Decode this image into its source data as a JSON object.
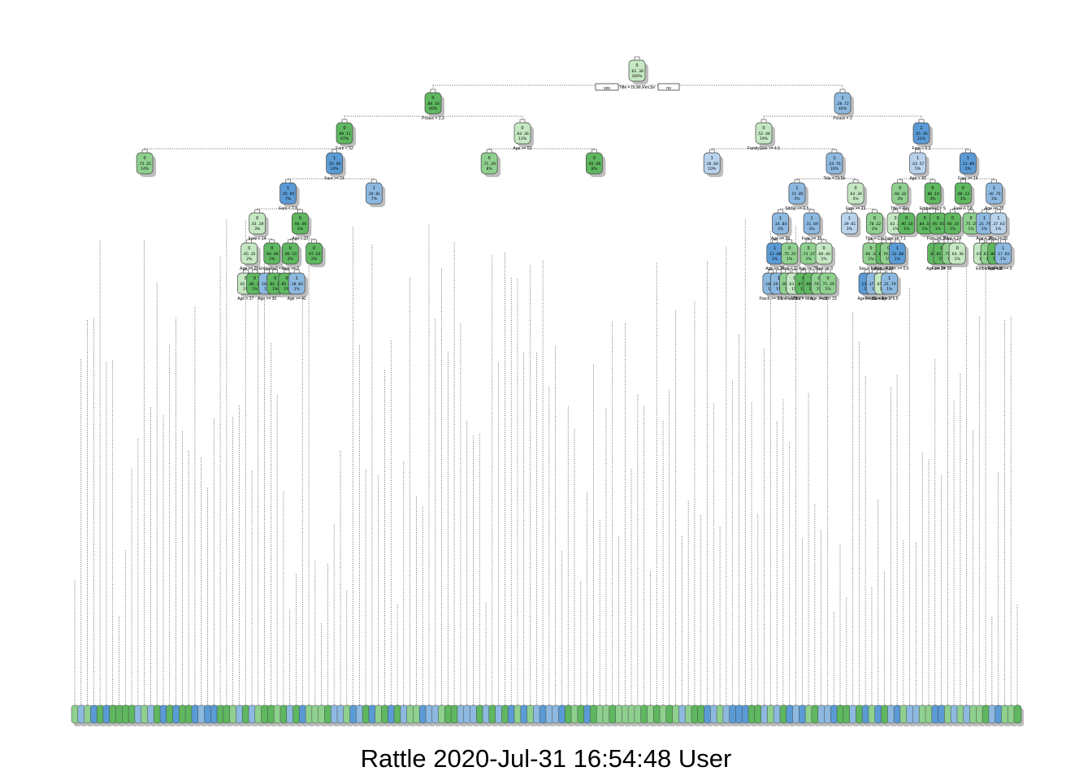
{
  "palette": {
    "green_dark": "#5fb760",
    "green_mid": "#8fd08f",
    "green_light": "#c5e8c3",
    "blue_light": "#b9d3ec",
    "blue_mid": "#8db9e0",
    "blue_dark": "#5b9bd5",
    "line": "#333333",
    "shadow": "#bdbdbd"
  },
  "footer": {
    "caption": "Rattle 2020-Jul-31 16:54:48 User"
  },
  "tree": {
    "root": {
      "cls": "0",
      "prob": ".62 .38",
      "pct": "100%",
      "split": "Title = Dr,Mr,Rev,Sir",
      "yes": "yes",
      "no": "no"
    },
    "level1": [
      {
        "cls": "0",
        "prob": ".84 .16",
        "pct": "60%",
        "split": "Pclass = 2,3"
      },
      {
        "cls": "1",
        "prob": ".28 .72",
        "pct": "40%",
        "split": "Pclass = 3"
      }
    ],
    "level2": [
      {
        "cls": "0",
        "prob": ".89 .11",
        "pct": "47%",
        "split": "Fare < 52"
      },
      {
        "cls": "0",
        "prob": ".64 .36",
        "pct": "13%",
        "split": "Age >= 53"
      },
      {
        "cls": "0",
        "prob": ".52 .48",
        "pct": "19%",
        "split": "FamilySize >= 4.5"
      },
      {
        "cls": "1",
        "prob": ".05 .95",
        "pct": "21%",
        "split": "Fare < 5.3"
      }
    ],
    "split_labels": [
      "Fare >= 14",
      "Fare < 7.8",
      "Fare < 14",
      "Age >= 28",
      "Age < 27",
      "Embarked = S",
      "Age >= 30",
      "Age < 27",
      "Fare >= 0",
      "Age >= 42",
      "Title = Dr,Mr",
      "SibSp >= 0.5",
      "Age >= 39",
      "Age >= 28",
      "Parch >= 0.5",
      "Fare < 11",
      "Fare < 125",
      "Fare < 27",
      "Fare >= 15",
      "Age >= 7.5",
      "Title = Miss",
      "Fare >= 9",
      "Age >= 30",
      "Fare < 15",
      "Fare >= 23",
      "Title = Col",
      "Sex = female",
      "Age >= 56",
      "Pclass = 2",
      "Age >= 24",
      "Fare >= 17",
      "Age < 9.5",
      "Age < 43",
      "Title = Rev",
      "Fare >= 7.1",
      "Parch >= 0.5",
      "Embarked = S",
      "Fare >= 115",
      "Age >= 28",
      "Fare >= 28"
    ],
    "leaf_count": 150
  }
}
